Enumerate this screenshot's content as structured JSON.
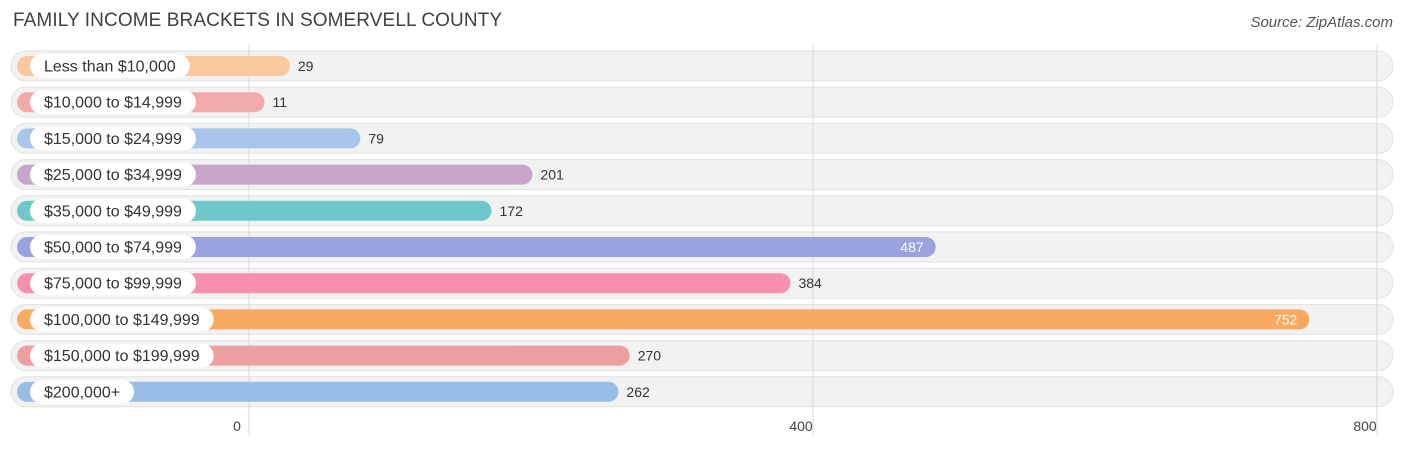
{
  "header": {
    "title": "FAMILY INCOME BRACKETS IN SOMERVELL COUNTY",
    "source": "Source: ZipAtlas.com"
  },
  "chart_data": {
    "type": "bar",
    "orientation": "horizontal",
    "title": "FAMILY INCOME BRACKETS IN SOMERVELL COUNTY",
    "xlabel": "",
    "ylabel": "",
    "xlim": [
      0,
      800
    ],
    "ticks": [
      0,
      400,
      800
    ],
    "tick_labels": [
      "0",
      "400",
      "800"
    ],
    "categories": [
      "Less than $10,000",
      "$10,000 to $14,999",
      "$15,000 to $24,999",
      "$25,000 to $34,999",
      "$35,000 to $49,999",
      "$50,000 to $74,999",
      "$75,000 to $99,999",
      "$100,000 to $149,999",
      "$150,000 to $199,999",
      "$200,000+"
    ],
    "values": [
      29,
      11,
      79,
      201,
      172,
      487,
      384,
      752,
      270,
      262
    ],
    "value_labels": [
      "29",
      "11",
      "79",
      "201",
      "172",
      "487",
      "384",
      "752",
      "270",
      "262"
    ],
    "colors": [
      "#f9c89e",
      "#f2aaaa",
      "#a8c6ea",
      "#c8a6cc",
      "#6fc8c9",
      "#9aa2e0",
      "#f78fae",
      "#f9a960",
      "#ee9f9f",
      "#98bde7"
    ],
    "grid": true,
    "legend": "none"
  }
}
